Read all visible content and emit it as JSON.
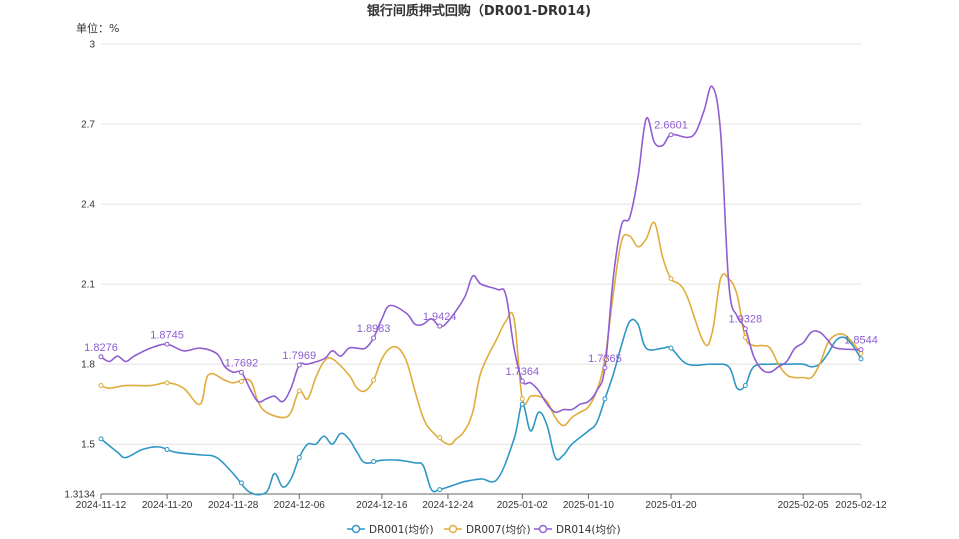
{
  "chart_data": {
    "type": "line",
    "title": "银行间质押式回购（DR001-DR014)",
    "unit_label": "单位：%",
    "ylim": [
      1.3134,
      3
    ],
    "y_ticks": [
      "1.3134",
      "1.5",
      "1.8",
      "2.1",
      "2.4",
      "2.7",
      "3"
    ],
    "y_tick_values": [
      1.3134,
      1.5,
      1.8,
      2.1,
      2.4,
      2.7,
      3
    ],
    "x_range": [
      "2024-11-12",
      "2025-02-12"
    ],
    "x_ticks": [
      "2024-11-12",
      "2024-11-20",
      "2024-11-28",
      "2024-12-06",
      "2024-12-16",
      "2024-12-24",
      "2025-01-02",
      "2025-01-10",
      "2025-01-20",
      "2025-02-05",
      "2025-02-12"
    ],
    "grid": true,
    "legend_position": "bottom-center",
    "colors": {
      "DR001": "#2f97c6",
      "DR007": "#e0ad3c",
      "DR014": "#8f5ed1",
      "grid": "#e0e0e0",
      "axis": "#666666"
    },
    "series": [
      {
        "name": "DR001(均价)",
        "color": "#2f97c6",
        "points": [
          [
            "2024-11-12",
            1.52
          ],
          [
            "2024-11-14",
            1.47
          ],
          [
            "2024-11-15",
            1.45
          ],
          [
            "2024-11-17",
            1.48
          ],
          [
            "2024-11-19",
            1.49
          ],
          [
            "2024-11-21",
            1.47
          ],
          [
            "2024-11-24",
            1.46
          ],
          [
            "2024-11-26",
            1.45
          ],
          [
            "2024-11-28",
            1.39
          ],
          [
            "2024-11-30",
            1.32
          ],
          [
            "2024-12-02",
            1.32
          ],
          [
            "2024-12-03",
            1.39
          ],
          [
            "2024-12-04",
            1.34
          ],
          [
            "2024-12-05",
            1.37
          ],
          [
            "2024-12-06",
            1.45
          ],
          [
            "2024-12-07",
            1.5
          ],
          [
            "2024-12-08",
            1.5
          ],
          [
            "2024-12-09",
            1.53
          ],
          [
            "2024-12-10",
            1.5
          ],
          [
            "2024-12-11",
            1.54
          ],
          [
            "2024-12-12",
            1.52
          ],
          [
            "2024-12-13",
            1.47
          ],
          [
            "2024-12-14",
            1.43
          ],
          [
            "2024-12-16",
            1.44
          ],
          [
            "2024-12-18",
            1.44
          ],
          [
            "2024-12-20",
            1.43
          ],
          [
            "2024-12-21",
            1.42
          ],
          [
            "2024-12-22",
            1.33
          ],
          [
            "2024-12-23",
            1.33
          ],
          [
            "2024-12-25",
            1.35
          ],
          [
            "2024-12-26",
            1.36
          ],
          [
            "2024-12-28",
            1.37
          ],
          [
            "2024-12-30",
            1.37
          ],
          [
            "2025-01-01",
            1.52
          ],
          [
            "2025-01-02",
            1.65
          ],
          [
            "2025-01-03",
            1.55
          ],
          [
            "2025-01-04",
            1.62
          ],
          [
            "2025-01-05",
            1.57
          ],
          [
            "2025-01-06",
            1.45
          ],
          [
            "2025-01-07",
            1.46
          ],
          [
            "2025-01-08",
            1.5
          ],
          [
            "2025-01-10",
            1.55
          ],
          [
            "2025-01-11",
            1.58
          ],
          [
            "2025-01-12",
            1.67
          ],
          [
            "2025-01-13",
            1.76
          ],
          [
            "2025-01-14",
            1.87
          ],
          [
            "2025-01-15",
            1.96
          ],
          [
            "2025-01-16",
            1.95
          ],
          [
            "2025-01-17",
            1.86
          ],
          [
            "2025-01-19",
            1.86
          ],
          [
            "2025-01-20",
            1.86
          ],
          [
            "2025-01-22",
            1.8
          ],
          [
            "2025-01-25",
            1.8
          ],
          [
            "2025-01-27",
            1.79
          ],
          [
            "2025-01-28",
            1.71
          ],
          [
            "2025-01-29",
            1.72
          ],
          [
            "2025-01-30",
            1.79
          ],
          [
            "2025-02-01",
            1.8
          ],
          [
            "2025-02-03",
            1.8
          ],
          [
            "2025-02-05",
            1.8
          ],
          [
            "2025-02-06",
            1.79
          ],
          [
            "2025-02-07",
            1.8
          ],
          [
            "2025-02-08",
            1.84
          ],
          [
            "2025-02-09",
            1.89
          ],
          [
            "2025-02-10",
            1.9
          ],
          [
            "2025-02-11",
            1.87
          ],
          [
            "2025-02-12",
            1.82
          ]
        ]
      },
      {
        "name": "DR007(均价)",
        "color": "#e0ad3c",
        "points": [
          [
            "2024-11-12",
            1.72
          ],
          [
            "2024-11-13",
            1.71
          ],
          [
            "2024-11-15",
            1.72
          ],
          [
            "2024-11-18",
            1.72
          ],
          [
            "2024-11-20",
            1.73
          ],
          [
            "2024-11-22",
            1.71
          ],
          [
            "2024-11-24",
            1.65
          ],
          [
            "2024-11-25",
            1.76
          ],
          [
            "2024-11-27",
            1.74
          ],
          [
            "2024-11-28",
            1.73
          ],
          [
            "2024-11-30",
            1.74
          ],
          [
            "2024-12-01",
            1.66
          ],
          [
            "2024-12-02",
            1.62
          ],
          [
            "2024-12-04",
            1.6
          ],
          [
            "2024-12-05",
            1.62
          ],
          [
            "2024-12-06",
            1.7
          ],
          [
            "2024-12-07",
            1.67
          ],
          [
            "2024-12-08",
            1.75
          ],
          [
            "2024-12-09",
            1.81
          ],
          [
            "2024-12-10",
            1.82
          ],
          [
            "2024-12-12",
            1.76
          ],
          [
            "2024-12-13",
            1.71
          ],
          [
            "2024-12-14",
            1.7
          ],
          [
            "2024-12-15",
            1.74
          ],
          [
            "2024-12-16",
            1.82
          ],
          [
            "2024-12-17",
            1.86
          ],
          [
            "2024-12-18",
            1.86
          ],
          [
            "2024-12-19",
            1.81
          ],
          [
            "2024-12-20",
            1.7
          ],
          [
            "2024-12-21",
            1.6
          ],
          [
            "2024-12-22",
            1.55
          ],
          [
            "2024-12-24",
            1.5
          ],
          [
            "2024-12-25",
            1.52
          ],
          [
            "2024-12-26",
            1.55
          ],
          [
            "2024-12-27",
            1.62
          ],
          [
            "2024-12-28",
            1.77
          ],
          [
            "2024-12-30",
            1.9
          ],
          [
            "2024-12-31",
            1.96
          ],
          [
            "2025-01-01",
            1.97
          ],
          [
            "2025-01-02",
            1.67
          ],
          [
            "2025-01-03",
            1.68
          ],
          [
            "2025-01-04",
            1.68
          ],
          [
            "2025-01-05",
            1.66
          ],
          [
            "2025-01-06",
            1.6
          ],
          [
            "2025-01-07",
            1.57
          ],
          [
            "2025-01-08",
            1.6
          ],
          [
            "2025-01-09",
            1.62
          ],
          [
            "2025-01-10",
            1.64
          ],
          [
            "2025-01-11",
            1.7
          ],
          [
            "2025-01-12",
            1.82
          ],
          [
            "2025-01-13",
            2.06
          ],
          [
            "2025-01-14",
            2.26
          ],
          [
            "2025-01-15",
            2.28
          ],
          [
            "2025-01-16",
            2.24
          ],
          [
            "2025-01-17",
            2.27
          ],
          [
            "2025-01-18",
            2.33
          ],
          [
            "2025-01-19",
            2.2
          ],
          [
            "2025-01-20",
            2.12
          ],
          [
            "2025-01-21",
            2.1
          ],
          [
            "2025-01-22",
            2.05
          ],
          [
            "2025-01-24",
            1.88
          ],
          [
            "2025-01-25",
            1.92
          ],
          [
            "2025-01-26",
            2.12
          ],
          [
            "2025-01-27",
            2.12
          ],
          [
            "2025-01-28",
            2.06
          ],
          [
            "2025-01-29",
            1.9
          ],
          [
            "2025-01-30",
            1.87
          ],
          [
            "2025-01-31",
            1.87
          ],
          [
            "2025-02-01",
            1.86
          ],
          [
            "2025-02-02",
            1.8
          ],
          [
            "2025-02-03",
            1.76
          ],
          [
            "2025-02-04",
            1.75
          ],
          [
            "2025-02-05",
            1.75
          ],
          [
            "2025-02-06",
            1.75
          ],
          [
            "2025-02-07",
            1.8
          ],
          [
            "2025-02-08",
            1.88
          ],
          [
            "2025-02-09",
            1.91
          ],
          [
            "2025-02-10",
            1.91
          ],
          [
            "2025-02-11",
            1.88
          ],
          [
            "2025-02-12",
            1.84
          ]
        ]
      },
      {
        "name": "DR014(均价)",
        "color": "#8f5ed1",
        "points": [
          [
            "2024-11-12",
            1.8276
          ],
          [
            "2024-11-13",
            1.81
          ],
          [
            "2024-11-14",
            1.83
          ],
          [
            "2024-11-15",
            1.81
          ],
          [
            "2024-11-16",
            1.83
          ],
          [
            "2024-11-18",
            1.86
          ],
          [
            "2024-11-20",
            1.8745
          ],
          [
            "2024-11-22",
            1.85
          ],
          [
            "2024-11-24",
            1.86
          ],
          [
            "2024-11-26",
            1.84
          ],
          [
            "2024-11-27",
            1.79
          ],
          [
            "2024-11-28",
            1.77
          ],
          [
            "2024-11-29",
            1.7692
          ],
          [
            "2024-11-30",
            1.71
          ],
          [
            "2024-12-01",
            1.66
          ],
          [
            "2024-12-02",
            1.67
          ],
          [
            "2024-12-03",
            1.68
          ],
          [
            "2024-12-04",
            1.66
          ],
          [
            "2024-12-05",
            1.71
          ],
          [
            "2024-12-06",
            1.7969
          ],
          [
            "2024-12-07",
            1.8
          ],
          [
            "2024-12-09",
            1.82
          ],
          [
            "2024-12-10",
            1.85
          ],
          [
            "2024-12-11",
            1.83
          ],
          [
            "2024-12-12",
            1.86
          ],
          [
            "2024-12-13",
            1.86
          ],
          [
            "2024-12-14",
            1.86
          ],
          [
            "2024-12-15",
            1.8983
          ],
          [
            "2024-12-16",
            1.97
          ],
          [
            "2024-12-17",
            2.02
          ],
          [
            "2024-12-19",
            1.99
          ],
          [
            "2024-12-20",
            1.95
          ],
          [
            "2024-12-21",
            1.95
          ],
          [
            "2024-12-22",
            1.97
          ],
          [
            "2024-12-23",
            1.9424
          ],
          [
            "2024-12-24",
            1.96
          ],
          [
            "2024-12-26",
            2.05
          ],
          [
            "2024-12-27",
            2.13
          ],
          [
            "2024-12-28",
            2.1
          ],
          [
            "2024-12-30",
            2.08
          ],
          [
            "2024-12-31",
            2.06
          ],
          [
            "2025-01-01",
            1.86
          ],
          [
            "2025-01-02",
            1.7364
          ],
          [
            "2025-01-03",
            1.73
          ],
          [
            "2025-01-04",
            1.7
          ],
          [
            "2025-01-05",
            1.65
          ],
          [
            "2025-01-06",
            1.62
          ],
          [
            "2025-01-07",
            1.63
          ],
          [
            "2025-01-08",
            1.63
          ],
          [
            "2025-01-09",
            1.65
          ],
          [
            "2025-01-10",
            1.66
          ],
          [
            "2025-01-11",
            1.7
          ],
          [
            "2025-01-12",
            1.7865
          ],
          [
            "2025-01-13",
            2.12
          ],
          [
            "2025-01-14",
            2.32
          ],
          [
            "2025-01-15",
            2.35
          ],
          [
            "2025-01-16",
            2.5
          ],
          [
            "2025-01-17",
            2.72
          ],
          [
            "2025-01-18",
            2.63
          ],
          [
            "2025-01-19",
            2.62
          ],
          [
            "2025-01-20",
            2.6601
          ],
          [
            "2025-01-22",
            2.65
          ],
          [
            "2025-01-23",
            2.67
          ],
          [
            "2025-01-24",
            2.75
          ],
          [
            "2025-01-25",
            2.84
          ],
          [
            "2025-01-26",
            2.67
          ],
          [
            "2025-01-27",
            2.1
          ],
          [
            "2025-01-28",
            1.98
          ],
          [
            "2025-01-29",
            1.9328
          ],
          [
            "2025-01-30",
            1.83
          ],
          [
            "2025-01-31",
            1.78
          ],
          [
            "2025-02-01",
            1.77
          ],
          [
            "2025-02-02",
            1.79
          ],
          [
            "2025-02-03",
            1.81
          ],
          [
            "2025-02-04",
            1.86
          ],
          [
            "2025-02-05",
            1.88
          ],
          [
            "2025-02-06",
            1.92
          ],
          [
            "2025-02-07",
            1.92
          ],
          [
            "2025-02-08",
            1.89
          ],
          [
            "2025-02-09",
            1.86
          ],
          [
            "2025-02-12",
            1.8544
          ]
        ]
      }
    ],
    "dr014_labels": [
      {
        "x": "2024-11-12",
        "text": "1.8276"
      },
      {
        "x": "2024-11-20",
        "text": "1.8745"
      },
      {
        "x": "2024-11-29",
        "text": "1.7692"
      },
      {
        "x": "2024-12-06",
        "text": "1.7969"
      },
      {
        "x": "2024-12-15",
        "text": "1.8983"
      },
      {
        "x": "2024-12-23",
        "text": "1.9424"
      },
      {
        "x": "2025-01-02",
        "text": "1.7364"
      },
      {
        "x": "2025-01-12",
        "text": "1.7865"
      },
      {
        "x": "2025-01-20",
        "text": "2.6601"
      },
      {
        "x": "2025-01-29",
        "text": "1.9328"
      },
      {
        "x": "2025-02-12",
        "text": "1.8544"
      }
    ],
    "marker_dates": [
      "2024-11-12",
      "2024-11-20",
      "2024-11-29",
      "2024-12-06",
      "2024-12-15",
      "2024-12-23",
      "2025-01-02",
      "2025-01-12",
      "2025-01-20",
      "2025-01-29",
      "2025-02-12"
    ]
  }
}
